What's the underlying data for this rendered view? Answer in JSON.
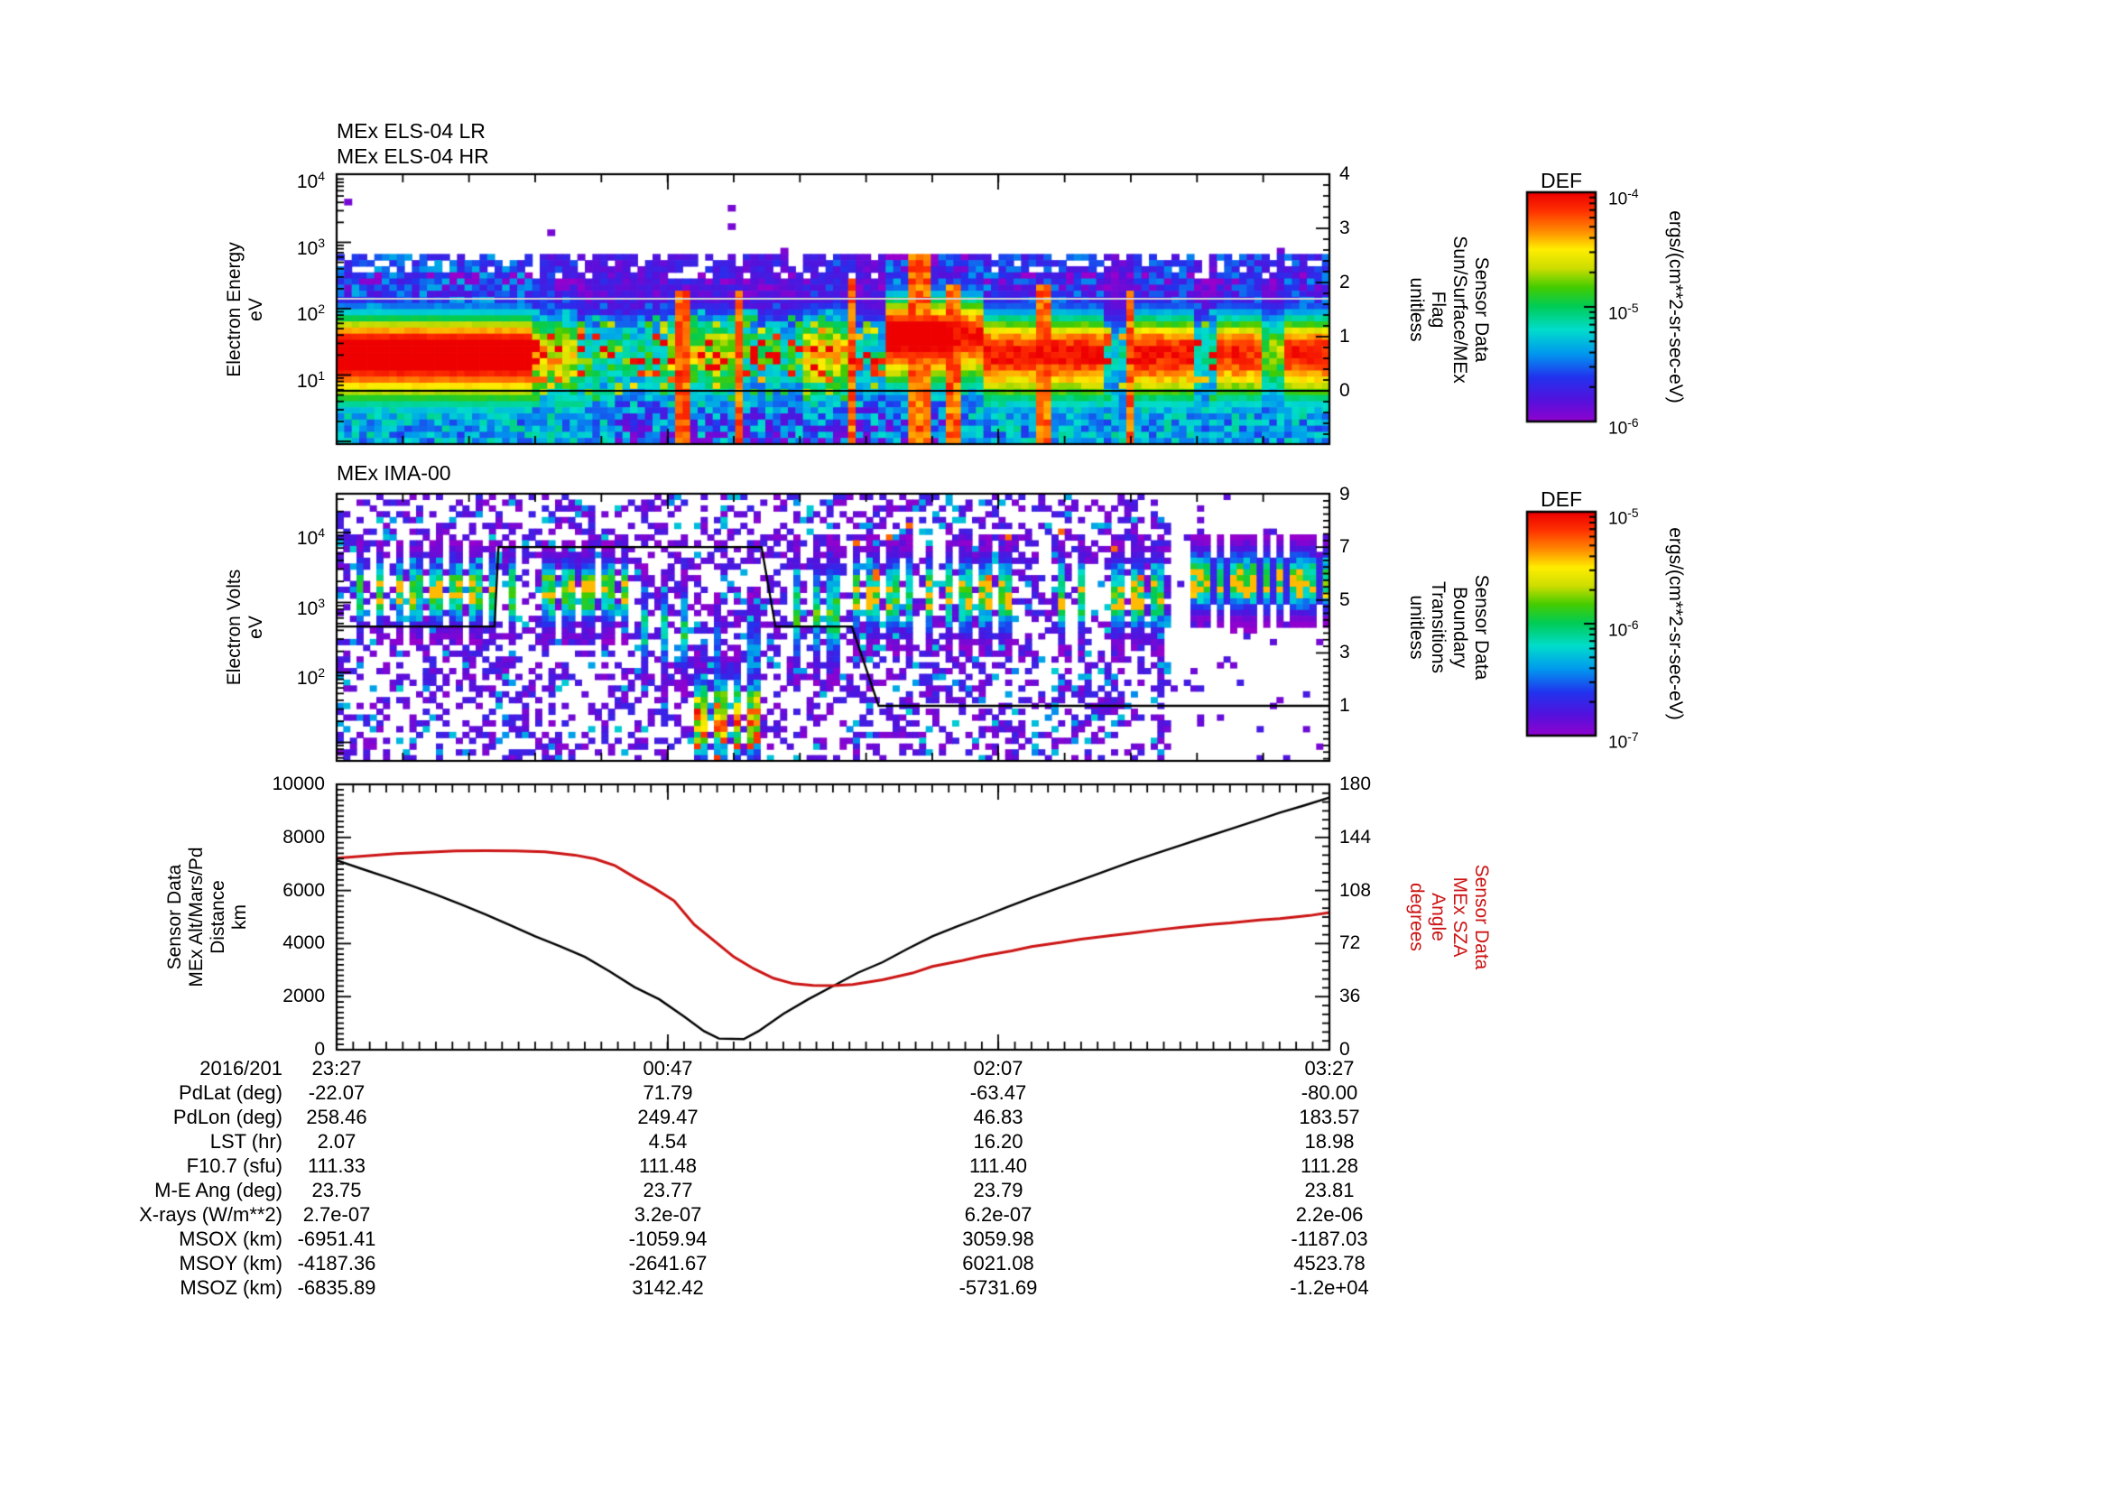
{
  "figure": {
    "background": "#ffffff",
    "accent_red": "#cc1414",
    "els": {
      "title_lines": [
        "MEx ELS-04 LR",
        "MEx ELS-04 HR"
      ],
      "ylabel_lines": [
        "Electron Energy",
        "eV"
      ],
      "y_exp_ticks": [
        4,
        3,
        2,
        1
      ],
      "right_label_lines": [
        "Sensor Data",
        "Sun/Surface/MEx",
        "Flag",
        "unitless"
      ],
      "right_ticks": [
        4,
        3,
        2,
        1,
        0
      ]
    },
    "ima": {
      "title": "MEx IMA-00",
      "ylabel_lines": [
        "Electron Volts",
        "eV"
      ],
      "y_exp_ticks": [
        4,
        3,
        2
      ],
      "right_label_lines": [
        "Sensor Data",
        "Boundary",
        "Transitions",
        "unitless"
      ],
      "right_ticks": [
        9,
        7,
        5,
        3,
        1
      ]
    },
    "lines_panel": {
      "left_label_lines": [
        "Sensor Data",
        "MEx Alt/Mars/Pd",
        "Distance",
        "km"
      ],
      "left_ticks": [
        10000,
        8000,
        6000,
        4000,
        2000,
        0
      ],
      "right_label_lines": [
        "Sensor Data",
        "MEx SZA",
        "Angle",
        "degrees"
      ],
      "right_ticks": [
        180,
        144,
        108,
        72,
        36,
        0
      ]
    },
    "colorbars": [
      {
        "title": "DEF",
        "unit": "ergs/(cm**2-sr-sec-eV)",
        "tick_exps": [
          -4,
          -5,
          -6
        ]
      },
      {
        "title": "DEF",
        "unit": "ergs/(cm**2-sr-sec-eV)",
        "tick_exps": [
          -5,
          -6,
          -7
        ]
      }
    ],
    "xaxis": {
      "date_label": "2016/201",
      "time_ticks": [
        "23:27",
        "00:47",
        "02:07",
        "03:27"
      ]
    },
    "table": {
      "rows": [
        {
          "label": "PdLat (deg)",
          "values": [
            "-22.07",
            "71.79",
            "-63.47",
            "-80.00"
          ]
        },
        {
          "label": "PdLon (deg)",
          "values": [
            "258.46",
            "249.47",
            "46.83",
            "183.57"
          ]
        },
        {
          "label": "LST (hr)",
          "values": [
            "2.07",
            "4.54",
            "16.20",
            "18.98"
          ]
        },
        {
          "label": "F10.7 (sfu)",
          "values": [
            "111.33",
            "111.48",
            "111.40",
            "111.28"
          ]
        },
        {
          "label": "M-E Ang (deg)",
          "values": [
            "23.75",
            "23.77",
            "23.79",
            "23.81"
          ]
        },
        {
          "label": "X-rays (W/m**2)",
          "values": [
            "2.7e-07",
            "3.2e-07",
            "6.2e-07",
            "2.2e-06"
          ]
        },
        {
          "label": "MSOX (km)",
          "values": [
            "-6951.41",
            "-1059.94",
            "3059.98",
            "-1187.03"
          ]
        },
        {
          "label": "MSOY (km)",
          "values": [
            "-4187.36",
            "-2641.67",
            "6021.08",
            "4523.78"
          ]
        },
        {
          "label": "MSOZ (km)",
          "values": [
            "-6835.89",
            "3142.42",
            "-5731.69",
            "-1.2e+04"
          ]
        }
      ]
    }
  },
  "chart_data": {
    "els_spectrogram": {
      "type": "heatmap",
      "title": "MEx ELS-04 LR / MEx ELS-04 HR",
      "xlabel": "time 2016/201 23:27 to 03:27",
      "ylabel": "Electron Energy (eV)",
      "y_range_log10": [
        0.0,
        4.03
      ],
      "colorbar_range": [
        1e-06,
        0.0001
      ],
      "colorbar_units": "ergs/(cm**2-sr-sec-eV)",
      "flag_overlay_lines": [
        {
          "value": 1.7,
          "color": "#d6d6d6"
        },
        {
          "value": 0.0,
          "color": "#000000"
        }
      ],
      "band_center_default": 1.35,
      "band_center_segments": [
        [
          0.555,
          0.65,
          1.62
        ]
      ],
      "band_segments": [
        [
          0.0,
          0.2,
          1.0,
          0.04
        ],
        [
          0.2,
          0.24,
          0.8,
          0.3
        ],
        [
          0.24,
          0.33,
          0.6,
          0.45
        ],
        [
          0.33,
          0.4,
          0.75,
          0.35
        ],
        [
          0.4,
          0.47,
          0.6,
          0.45
        ],
        [
          0.47,
          0.525,
          0.8,
          0.3
        ],
        [
          0.525,
          0.555,
          0.5,
          0.4
        ],
        [
          0.555,
          0.625,
          1.0,
          0.08
        ],
        [
          0.625,
          0.77,
          0.93,
          0.12
        ],
        [
          0.77,
          0.8,
          0.45,
          0.3
        ],
        [
          0.8,
          0.865,
          0.93,
          0.12
        ],
        [
          0.865,
          0.89,
          0.5,
          0.3
        ],
        [
          0.89,
          0.935,
          0.9,
          0.12
        ],
        [
          0.935,
          0.955,
          0.65,
          0.25
        ],
        [
          0.955,
          1.0,
          0.9,
          0.1
        ]
      ],
      "plumes": [
        [
          0.35,
          0.006,
          2.25
        ],
        [
          0.405,
          0.006,
          2.3
        ],
        [
          0.52,
          0.006,
          2.5
        ],
        [
          0.585,
          0.01,
          2.8
        ],
        [
          0.62,
          0.006,
          2.4
        ],
        [
          0.71,
          0.008,
          2.35
        ],
        [
          0.8,
          0.006,
          2.3
        ]
      ]
    },
    "ima_spectrogram": {
      "type": "heatmap",
      "title": "MEx IMA-00",
      "xlabel": "time 2016/201 23:27 to 03:27",
      "ylabel": "Electron Volts (eV)",
      "y_range_log10": [
        0.74,
        4.55
      ],
      "colorbar_range": [
        1e-07,
        1e-05
      ],
      "colorbar_units": "ergs/(cm**2-sr-sec-eV)",
      "boundary_overlay_points": [
        [
          0.0,
          4
        ],
        [
          0.159,
          4
        ],
        [
          0.163,
          7
        ],
        [
          0.428,
          7
        ],
        [
          0.442,
          4
        ],
        [
          0.519,
          4
        ],
        [
          0.546,
          1
        ],
        [
          1.0,
          1
        ]
      ],
      "bar_segments": [
        {
          "t0": 0.0,
          "t1": 0.3,
          "c": 3.15,
          "hw": 0.4,
          "amp": 0.62,
          "period": 21,
          "barw": 11,
          "skip": 0.12,
          "kind": "main"
        },
        {
          "t0": 0.3,
          "t1": 0.357,
          "c": 2.6,
          "hw": 0.5,
          "amp": 0.45,
          "period": 21,
          "barw": 11,
          "skip": 0.1,
          "kind": "plain"
        },
        {
          "t0": 0.357,
          "t1": 0.428,
          "c": 1.35,
          "hw": 0.5,
          "amp": 0.78,
          "period": 19,
          "barw": 12,
          "skip": 0.05,
          "kind": "hot"
        },
        {
          "t0": 0.357,
          "t1": 0.428,
          "c": 2.3,
          "hw": 0.5,
          "amp": 0.3,
          "period": 19,
          "barw": 10,
          "skip": 0.3,
          "kind": "plain"
        },
        {
          "t0": 0.432,
          "t1": 0.52,
          "c": 2.85,
          "hw": 0.6,
          "amp": 0.5,
          "period": 21,
          "barw": 11,
          "skip": 0.15,
          "kind": "plain"
        },
        {
          "t0": 0.52,
          "t1": 0.843,
          "c": 3.1,
          "hw": 0.45,
          "amp": 0.6,
          "period": 21,
          "barw": 11,
          "skip": 0.12,
          "kind": "main"
        },
        {
          "t0": 0.862,
          "t1": 1.0,
          "c": 3.3,
          "hw": 0.36,
          "amp": 0.62,
          "period": 13,
          "barw": 9,
          "skip": 0.0,
          "kind": "block"
        }
      ],
      "speckle": {
        "density_left": 0.4,
        "density_right": 0.04,
        "split_t": 0.843
      }
    },
    "distance_sza_lines": {
      "type": "line",
      "x_tick_labels": [
        "23:27",
        "00:47",
        "02:07",
        "03:27"
      ],
      "x_date": "2016/201",
      "series": [
        {
          "name": "Sensor Data MEx Alt/Mars/Pd Distance (km)",
          "color": "#000000",
          "ylim": [
            0,
            10000
          ],
          "axis": "left",
          "points": [
            [
              0,
              7135
            ],
            [
              0.025,
              6820
            ],
            [
              0.05,
              6510
            ],
            [
              0.075,
              6190
            ],
            [
              0.1,
              5850
            ],
            [
              0.125,
              5480
            ],
            [
              0.15,
              5100
            ],
            [
              0.175,
              4690
            ],
            [
              0.2,
              4270
            ],
            [
              0.225,
              3900
            ],
            [
              0.25,
              3500
            ],
            [
              0.275,
              2950
            ],
            [
              0.3,
              2360
            ],
            [
              0.325,
              1900
            ],
            [
              0.35,
              1250
            ],
            [
              0.37,
              700
            ],
            [
              0.385,
              420
            ],
            [
              0.41,
              400
            ],
            [
              0.425,
              700
            ],
            [
              0.45,
              1350
            ],
            [
              0.475,
              1900
            ],
            [
              0.5,
              2400
            ],
            [
              0.525,
              2900
            ],
            [
              0.55,
              3300
            ],
            [
              0.575,
              3800
            ],
            [
              0.6,
              4270
            ],
            [
              0.625,
              4650
            ],
            [
              0.65,
              5000
            ],
            [
              0.675,
              5370
            ],
            [
              0.7,
              5730
            ],
            [
              0.725,
              6070
            ],
            [
              0.75,
              6400
            ],
            [
              0.775,
              6740
            ],
            [
              0.8,
              7080
            ],
            [
              0.825,
              7390
            ],
            [
              0.85,
              7700
            ],
            [
              0.875,
              8010
            ],
            [
              0.9,
              8315
            ],
            [
              0.925,
              8620
            ],
            [
              0.95,
              8930
            ],
            [
              0.975,
              9210
            ],
            [
              1,
              9500
            ]
          ]
        },
        {
          "name": "Sensor Data MEx SZA Angle (degrees)",
          "color": "#cc1414",
          "ylim": [
            0,
            180
          ],
          "axis": "right",
          "points": [
            [
              0,
              130
            ],
            [
              0.03,
              131.5
            ],
            [
              0.06,
              133
            ],
            [
              0.09,
              134
            ],
            [
              0.12,
              134.8
            ],
            [
              0.15,
              135
            ],
            [
              0.18,
              134.8
            ],
            [
              0.21,
              134.3
            ],
            [
              0.24,
              132
            ],
            [
              0.26,
              129.5
            ],
            [
              0.28,
              125
            ],
            [
              0.3,
              117
            ],
            [
              0.32,
              109.5
            ],
            [
              0.34,
              101
            ],
            [
              0.36,
              85
            ],
            [
              0.38,
              74
            ],
            [
              0.4,
              63
            ],
            [
              0.42,
              55
            ],
            [
              0.44,
              48.5
            ],
            [
              0.46,
              44.8
            ],
            [
              0.48,
              43.6
            ],
            [
              0.5,
              43.5
            ],
            [
              0.52,
              44.2
            ],
            [
              0.55,
              47.5
            ],
            [
              0.58,
              52
            ],
            [
              0.6,
              56.5
            ],
            [
              0.63,
              60.5
            ],
            [
              0.65,
              63.5
            ],
            [
              0.68,
              67
            ],
            [
              0.7,
              70
            ],
            [
              0.73,
              72.8
            ],
            [
              0.75,
              75
            ],
            [
              0.78,
              77.5
            ],
            [
              0.8,
              79
            ],
            [
              0.83,
              81.5
            ],
            [
              0.85,
              83
            ],
            [
              0.88,
              85
            ],
            [
              0.9,
              86
            ],
            [
              0.93,
              88
            ],
            [
              0.95,
              89
            ],
            [
              0.98,
              91
            ],
            [
              1,
              93
            ]
          ]
        }
      ]
    }
  }
}
